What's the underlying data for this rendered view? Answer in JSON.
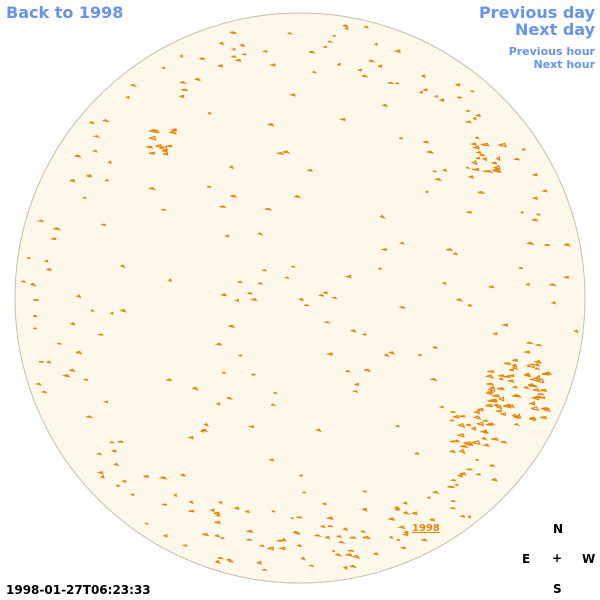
{
  "nav": {
    "back_label": "Back to 1998",
    "previous_day": "Previous day",
    "next_day": "Next day",
    "previous_hour": "Previous hour",
    "next_hour": "Next hour"
  },
  "timestamp": "1998-01-27T06:23:33",
  "region_label": "1998",
  "compass": {
    "north": "N",
    "east": "E",
    "center": "+",
    "west": "W",
    "south": "S"
  },
  "colors": {
    "link": "#6495ed",
    "disk_fill": "#fdf8ea",
    "disk_stroke": "#c8bfa8",
    "feature": "#e8850c"
  }
}
